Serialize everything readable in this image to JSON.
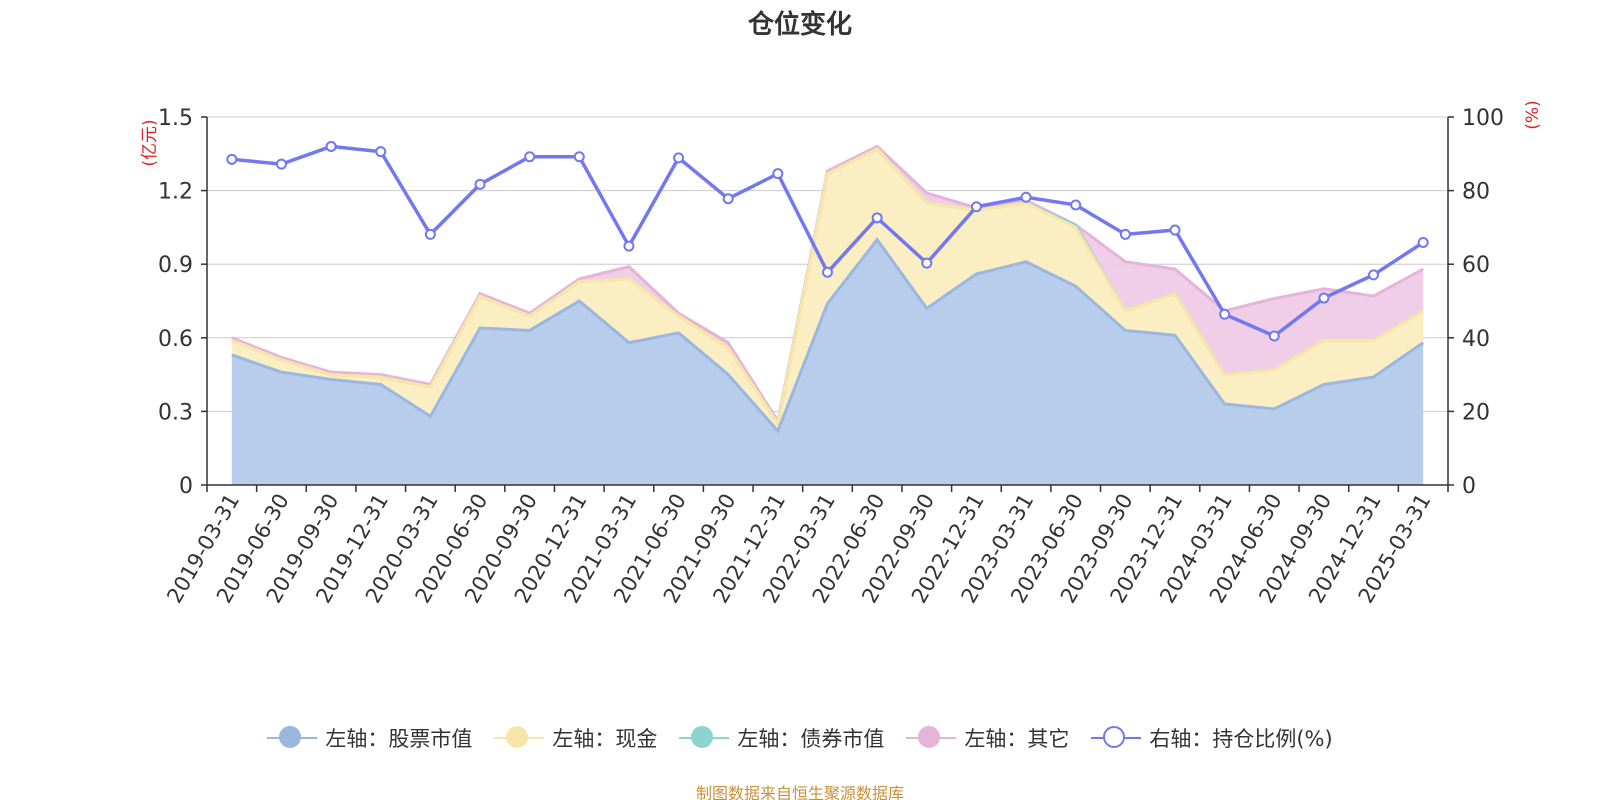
{
  "title": "仓位变化",
  "source_note": "制图数据来自恒生聚源数据库",
  "left_axis_unit": "(亿元)",
  "right_axis_unit": "(%)",
  "colors": {
    "stock": "#9bb7e0",
    "stock_fill": "#b7cdeb",
    "cash": "#f8e5a8",
    "cash_fill": "#faeec2",
    "bond": "#8fd3d0",
    "other": "#e6b3d9",
    "other_fill": "#efcbe6",
    "ratio": "#7178f0",
    "axis_unit": "#e02020"
  },
  "legend": [
    {
      "label": "左轴：股票市值",
      "key": "stock"
    },
    {
      "label": "左轴：现金",
      "key": "cash"
    },
    {
      "label": "左轴：债券市值",
      "key": "bond"
    },
    {
      "label": "左轴：其它",
      "key": "other"
    },
    {
      "label": "右轴：持仓比例(%)",
      "key": "ratio"
    }
  ],
  "chart_data": {
    "type": "area",
    "title": "仓位变化",
    "categories": [
      "2019-03-31",
      "2019-06-30",
      "2019-09-30",
      "2019-12-31",
      "2020-03-31",
      "2020-06-30",
      "2020-09-30",
      "2020-12-31",
      "2021-03-31",
      "2021-06-30",
      "2021-09-30",
      "2021-12-31",
      "2022-03-31",
      "2022-06-30",
      "2022-09-30",
      "2022-12-31",
      "2023-03-31",
      "2023-06-30",
      "2023-09-30",
      "2023-12-31",
      "2024-03-31",
      "2024-06-30",
      "2024-09-30",
      "2024-12-31",
      "2025-03-31"
    ],
    "left_axis": {
      "label": "(亿元)",
      "ylim": [
        0,
        1.5
      ],
      "ticks": [
        "0",
        "0.3",
        "0.6",
        "0.9",
        "1.2",
        "1.5"
      ]
    },
    "right_axis": {
      "label": "(%)",
      "ylim": [
        0,
        100
      ],
      "ticks": [
        "0",
        "20",
        "40",
        "60",
        "80",
        "100"
      ]
    },
    "grid": true,
    "legend_position": "bottom",
    "series": [
      {
        "name": "左轴：股票市值",
        "type": "area",
        "axis": "left",
        "values": [
          0.53,
          0.46,
          0.43,
          0.41,
          0.28,
          0.64,
          0.63,
          0.75,
          0.58,
          0.62,
          0.45,
          0.22,
          0.74,
          1.0,
          0.72,
          0.86,
          0.91,
          0.81,
          0.63,
          0.61,
          0.33,
          0.31,
          0.41,
          0.44,
          0.58
        ]
      },
      {
        "name": "左轴：现金",
        "type": "area",
        "axis": "left",
        "stacked_top": [
          0.59,
          0.51,
          0.45,
          0.44,
          0.4,
          0.77,
          0.69,
          0.83,
          0.84,
          0.69,
          0.56,
          0.25,
          1.27,
          1.37,
          1.15,
          1.12,
          1.15,
          1.05,
          0.71,
          0.78,
          0.45,
          0.47,
          0.59,
          0.59,
          0.71
        ]
      },
      {
        "name": "左轴：债券市值",
        "type": "area",
        "axis": "left",
        "stacked_top": [
          0.59,
          0.51,
          0.45,
          0.44,
          0.4,
          0.77,
          0.69,
          0.83,
          0.84,
          0.69,
          0.56,
          0.25,
          1.27,
          1.37,
          1.15,
          1.12,
          1.15,
          1.06,
          0.71,
          0.78,
          0.45,
          0.47,
          0.59,
          0.59,
          0.71
        ]
      },
      {
        "name": "左轴：其它",
        "type": "area",
        "axis": "left",
        "stacked_top": [
          0.6,
          0.52,
          0.46,
          0.45,
          0.41,
          0.78,
          0.7,
          0.84,
          0.89,
          0.7,
          0.58,
          0.26,
          1.28,
          1.38,
          1.19,
          1.13,
          1.16,
          1.06,
          0.91,
          0.88,
          0.71,
          0.76,
          0.8,
          0.77,
          0.88
        ]
      },
      {
        "name": "右轴：持仓比例(%)",
        "type": "line",
        "axis": "right",
        "values": [
          88.5,
          87.2,
          92,
          90.6,
          68.1,
          81.7,
          89.2,
          89.2,
          64.9,
          88.9,
          77.8,
          84.6,
          57.8,
          72.6,
          60.3,
          75.6,
          78.2,
          76.1,
          68.1,
          69.3,
          46.4,
          40.5,
          50.8,
          57.1,
          65.9
        ]
      }
    ]
  }
}
